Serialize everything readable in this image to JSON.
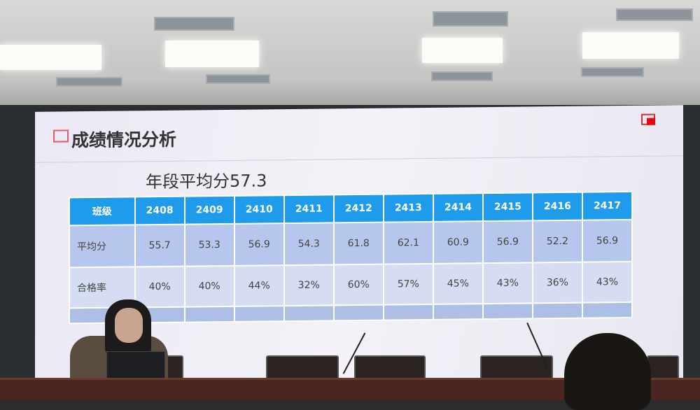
{
  "slide": {
    "title": "成绩情况分析",
    "grade_average": "年段平均分57.3",
    "table": {
      "header_label": "班级",
      "classes": [
        "2408",
        "2409",
        "2410",
        "2411",
        "2412",
        "2413",
        "2414",
        "2415",
        "2416",
        "2417"
      ],
      "rows": [
        {
          "label": "平均分",
          "values": [
            "55.7",
            "53.3",
            "56.9",
            "54.3",
            "61.8",
            "62.1",
            "60.9",
            "56.9",
            "52.2",
            "56.9"
          ]
        },
        {
          "label": "合格率",
          "values": [
            "40%",
            "40%",
            "44%",
            "32%",
            "60%",
            "57%",
            "45%",
            "43%",
            "36%",
            "43%"
          ]
        }
      ]
    },
    "colors": {
      "header": "#1e9bea",
      "row1": "#b6c6ec",
      "row2": "#d6dcf2",
      "logo": "#e01"
    }
  }
}
